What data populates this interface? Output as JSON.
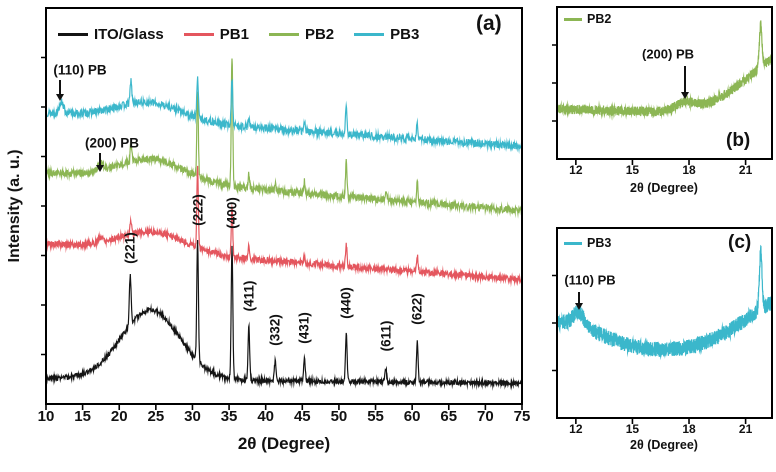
{
  "figure": {
    "background": "#ffffff"
  },
  "chart_data": [
    {
      "id": "a",
      "type": "line",
      "panel_label": "(a)",
      "xlabel": "2θ (Degree)",
      "ylabel": "Intensity (a. u.)",
      "xlim": [
        10,
        75
      ],
      "ylim": [
        0,
        1
      ],
      "grid": false,
      "legend_position": "top-inside",
      "xticks": [
        10,
        15,
        20,
        25,
        30,
        35,
        40,
        45,
        50,
        55,
        60,
        65,
        70,
        75
      ],
      "legend": [
        {
          "name": "ITO/Glass",
          "color": "#141414"
        },
        {
          "name": "PB1",
          "color": "#e4565e"
        },
        {
          "name": "PB2",
          "color": "#8cb654"
        },
        {
          "name": "PB3",
          "color": "#3bb7cb"
        }
      ],
      "annotations": [
        {
          "text": "(110) PB",
          "x": 12.1,
          "target_series": "PB3"
        },
        {
          "text": "(200) PB",
          "x": 17.5,
          "target_series": "PB2"
        }
      ],
      "peak_labels": [
        {
          "text": "(221)",
          "x": 21.5
        },
        {
          "text": "(222)",
          "x": 30.7
        },
        {
          "text": "(400)",
          "x": 35.4
        },
        {
          "text": "(411)",
          "x": 37.7
        },
        {
          "text": "(332)",
          "x": 41.3
        },
        {
          "text": "(431)",
          "x": 45.3
        },
        {
          "text": "(440)",
          "x": 51.0
        },
        {
          "text": "(611)",
          "x": 56.4
        },
        {
          "text": "(622)",
          "x": 60.7
        }
      ],
      "series": [
        {
          "name": "ITO/Glass",
          "color": "#141414",
          "offset": 0.065,
          "slope": -0.0002,
          "noise": 0.006,
          "seed": 3,
          "humps": [
            {
              "c": 24.3,
              "s": 4.0,
              "h": 0.175
            }
          ],
          "peaks": [
            {
              "c": 21.5,
              "h": 0.125,
              "s": 0.12
            },
            {
              "c": 30.7,
              "h": 0.305,
              "s": 0.11
            },
            {
              "c": 35.4,
              "h": 0.335,
              "s": 0.11
            },
            {
              "c": 37.7,
              "h": 0.135,
              "s": 0.11
            },
            {
              "c": 41.3,
              "h": 0.05,
              "s": 0.11
            },
            {
              "c": 45.3,
              "h": 0.055,
              "s": 0.11
            },
            {
              "c": 51.0,
              "h": 0.12,
              "s": 0.11
            },
            {
              "c": 56.4,
              "h": 0.035,
              "s": 0.11
            },
            {
              "c": 60.7,
              "h": 0.105,
              "s": 0.11
            }
          ]
        },
        {
          "name": "PB1",
          "color": "#e4565e",
          "offset": 0.405,
          "slope": -0.0014,
          "noise": 0.008,
          "seed": 5,
          "humps": [
            {
              "c": 24.5,
              "s": 4.5,
              "h": 0.05
            }
          ],
          "peaks": [
            {
              "c": 17.5,
              "h": 0.012,
              "s": 0.3
            },
            {
              "c": 21.6,
              "h": 0.035,
              "s": 0.11
            },
            {
              "c": 30.7,
              "h": 0.205,
              "s": 0.1
            },
            {
              "c": 35.4,
              "h": 0.125,
              "s": 0.1
            },
            {
              "c": 37.7,
              "h": 0.03,
              "s": 0.1
            },
            {
              "c": 45.3,
              "h": 0.02,
              "s": 0.1
            },
            {
              "c": 51.0,
              "h": 0.055,
              "s": 0.1
            },
            {
              "c": 60.7,
              "h": 0.04,
              "s": 0.1
            }
          ]
        },
        {
          "name": "PB2",
          "color": "#8cb654",
          "offset": 0.585,
          "slope": -0.0015,
          "noise": 0.009,
          "seed": 8,
          "humps": [
            {
              "c": 24.5,
              "s": 4.5,
              "h": 0.055
            }
          ],
          "peaks": [
            {
              "c": 17.5,
              "h": 0.02,
              "s": 0.35
            },
            {
              "c": 21.6,
              "h": 0.045,
              "s": 0.11
            },
            {
              "c": 30.7,
              "h": 0.215,
              "s": 0.1
            },
            {
              "c": 35.4,
              "h": 0.33,
              "s": 0.1
            },
            {
              "c": 37.7,
              "h": 0.035,
              "s": 0.1
            },
            {
              "c": 41.3,
              "h": 0.015,
              "s": 0.1
            },
            {
              "c": 45.3,
              "h": 0.03,
              "s": 0.1
            },
            {
              "c": 51.0,
              "h": 0.09,
              "s": 0.1
            },
            {
              "c": 56.4,
              "h": 0.02,
              "s": 0.1
            },
            {
              "c": 60.7,
              "h": 0.05,
              "s": 0.1
            }
          ]
        },
        {
          "name": "PB3",
          "color": "#3bb7cb",
          "offset": 0.735,
          "slope": -0.0013,
          "noise": 0.009,
          "seed": 13,
          "humps": [
            {
              "c": 24.0,
              "s": 4.5,
              "h": 0.045
            }
          ],
          "peaks": [
            {
              "c": 12.1,
              "h": 0.03,
              "s": 0.3
            },
            {
              "c": 21.6,
              "h": 0.06,
              "s": 0.11
            },
            {
              "c": 30.7,
              "h": 0.105,
              "s": 0.1
            },
            {
              "c": 35.4,
              "h": 0.12,
              "s": 0.1
            },
            {
              "c": 37.7,
              "h": 0.02,
              "s": 0.1
            },
            {
              "c": 45.3,
              "h": 0.02,
              "s": 0.1
            },
            {
              "c": 51.0,
              "h": 0.07,
              "s": 0.1
            },
            {
              "c": 60.7,
              "h": 0.04,
              "s": 0.1
            }
          ]
        }
      ]
    },
    {
      "id": "b",
      "type": "line",
      "panel_label": "(b)",
      "xlabel": "2θ (Degree)",
      "xlim": [
        11,
        22.4
      ],
      "ylim": [
        0,
        1
      ],
      "grid": false,
      "xticks": [
        12,
        15,
        18,
        21
      ],
      "legend": [
        {
          "name": "PB2",
          "color": "#8cb654"
        }
      ],
      "annotations": [
        {
          "text": "(200) PB",
          "x": 17.8,
          "target_series": "PB2"
        }
      ],
      "series": [
        {
          "name": "PB2",
          "color": "#8cb654",
          "offset": 0.33,
          "slope": -0.004,
          "noise": 0.032,
          "seed": 21,
          "humps": [
            {
              "c": 23.6,
              "s": 2.4,
              "h": 0.42
            },
            {
              "c": 17.8,
              "s": 0.5,
              "h": 0.05
            }
          ],
          "peaks": [
            {
              "c": 21.8,
              "h": 0.28,
              "s": 0.07
            }
          ]
        }
      ]
    },
    {
      "id": "c",
      "type": "line",
      "panel_label": "(c)",
      "xlabel": "2θ (Degree)",
      "xlim": [
        11,
        22.4
      ],
      "ylim": [
        0,
        1
      ],
      "grid": false,
      "xticks": [
        12,
        15,
        18,
        21
      ],
      "legend": [
        {
          "name": "PB3",
          "color": "#3bb7cb"
        }
      ],
      "annotations": [
        {
          "text": "(110) PB",
          "x": 12.15,
          "target_series": "PB3"
        }
      ],
      "series": [
        {
          "name": "PB3",
          "color": "#3bb7cb",
          "offset": 0.35,
          "slope": 0,
          "noise": 0.04,
          "seed": 33,
          "humps": [
            {
              "c": 11.3,
              "s": 2.0,
              "h": 0.15
            },
            {
              "c": 23.8,
              "s": 2.6,
              "h": 0.3
            },
            {
              "c": 12.15,
              "s": 0.28,
              "h": 0.07
            }
          ],
          "peaks": [
            {
              "c": 21.8,
              "h": 0.3,
              "s": 0.07
            }
          ]
        }
      ]
    }
  ]
}
